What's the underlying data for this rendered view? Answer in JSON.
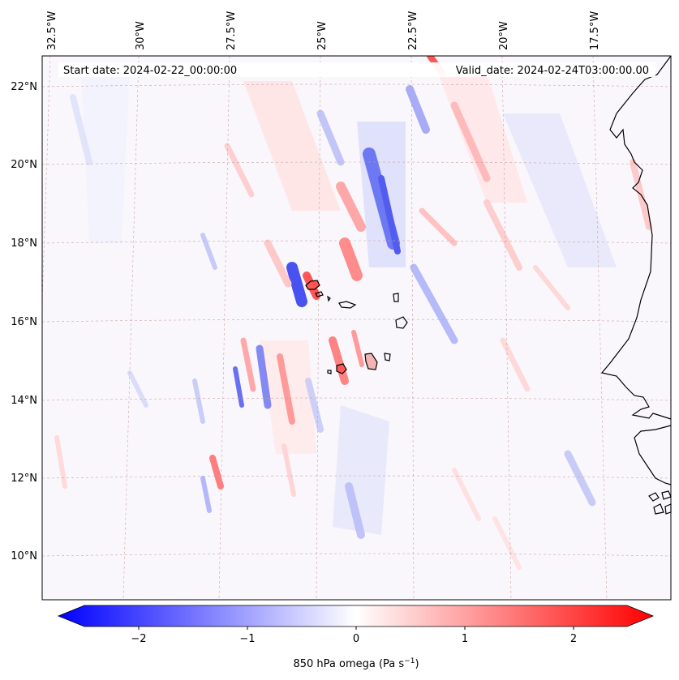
{
  "map": {
    "start_date": "Start date: 2024-02-22_00:00:00",
    "valid_date": "Valid_date: 2024-02-24T03:00:00.00",
    "lon_labels": [
      "32.5°W",
      "30°W",
      "27.5°W",
      "25°W",
      "22.5°W",
      "20°W",
      "17.5°W"
    ],
    "lat_labels": [
      "22°N",
      "20°N",
      "18°N",
      "16°N",
      "14°N",
      "12°N",
      "10°N"
    ]
  },
  "colorbar": {
    "ticks": [
      "−2",
      "−1",
      "0",
      "1",
      "2"
    ],
    "label_main": "850 hPa omega (Pa s",
    "label_sup": "−1",
    "label_end": ")",
    "colors": {
      "negative": "#0000ff",
      "neutral": "#ffffff",
      "positive": "#ff0000"
    }
  }
}
